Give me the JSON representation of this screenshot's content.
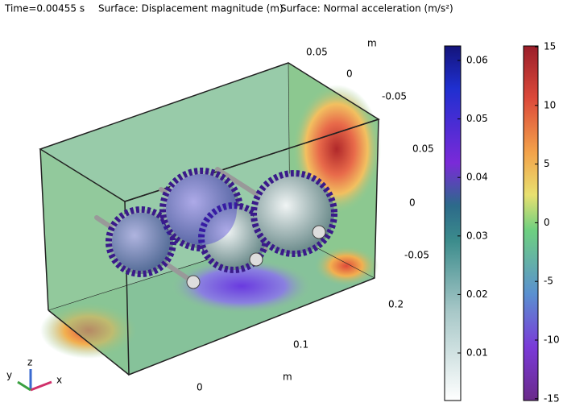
{
  "header": {
    "time": "Time=0.00455 s",
    "surface1": "Surface: Displacement magnitude (m)",
    "surface2": "Surface: Normal acceleration (m/s²)"
  },
  "axes": {
    "y_ticks": [
      0.05,
      0,
      -0.05
    ],
    "y_unit": "m",
    "z_ticks": [
      0.05,
      0,
      -0.05
    ],
    "x_ticks": [
      0.2,
      0.1,
      0
    ],
    "x_unit": "m"
  },
  "triad": {
    "x": "x",
    "y": "y",
    "z": "z"
  },
  "colorbar_displacement": {
    "ticks": [
      0.06,
      0.05,
      0.04,
      0.03,
      0.02,
      0.01
    ]
  },
  "colorbar_acceleration": {
    "ticks": [
      15,
      10,
      5,
      0,
      -5,
      -10,
      -15
    ]
  }
}
